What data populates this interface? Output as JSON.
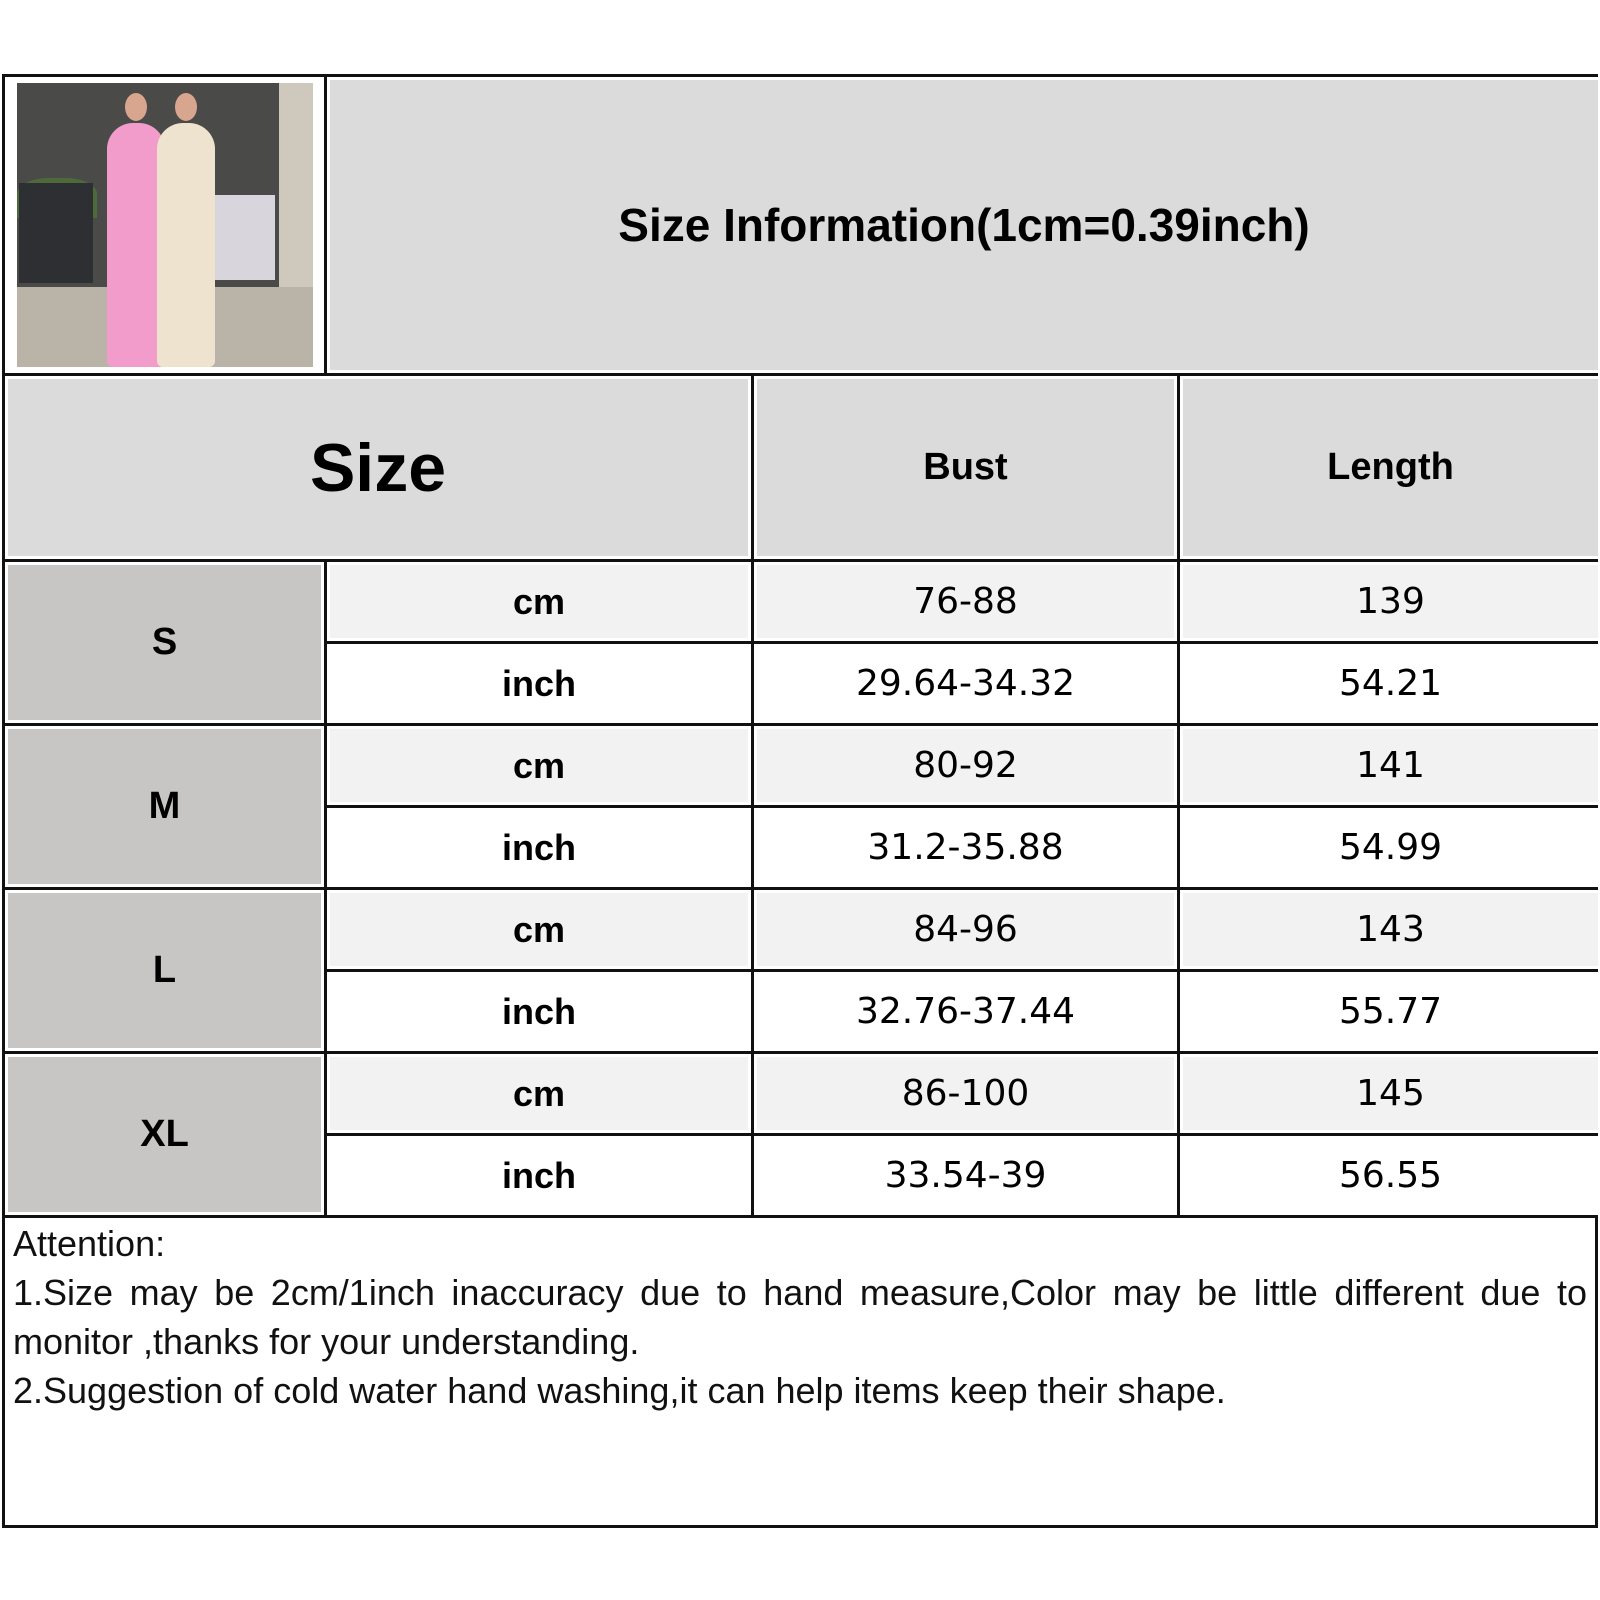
{
  "header": {
    "title": "Size Information(1cm=0.39inch)",
    "photo": "two-models-in-long-dresses"
  },
  "columns": {
    "size": "Size",
    "bust": "Bust",
    "length": "Length"
  },
  "rows": [
    {
      "size": "S",
      "cm": {
        "unit": "cm",
        "bust": "76-88",
        "length": "139"
      },
      "inch": {
        "unit": "inch",
        "bust": "29.64-34.32",
        "length": "54.21"
      }
    },
    {
      "size": "M",
      "cm": {
        "unit": "cm",
        "bust": "80-92",
        "length": "141"
      },
      "inch": {
        "unit": "inch",
        "bust": "31.2-35.88",
        "length": "54.99"
      }
    },
    {
      "size": "L",
      "cm": {
        "unit": "cm",
        "bust": "84-96",
        "length": "143"
      },
      "inch": {
        "unit": "inch",
        "bust": "32.76-37.44",
        "length": "55.77"
      }
    },
    {
      "size": "XL",
      "cm": {
        "unit": "cm",
        "bust": "86-100",
        "length": "145"
      },
      "inch": {
        "unit": "inch",
        "bust": "33.54-39",
        "length": "56.55"
      }
    }
  ],
  "attention": {
    "heading": "Attention:",
    "notes": [
      "1.Size may be 2cm/1inch inaccuracy due to hand measure,Color may be little different due to monitor ,thanks for your understanding.",
      "2.Suggestion of cold water hand washing,it can help items keep their shape."
    ]
  },
  "colors": {
    "header_bg": "#dcdbdb",
    "size_label_bg": "#c8c5c5",
    "cm_row_bg": "#f2f2f2",
    "inch_row_bg": "#ffffff",
    "border": "#111111"
  }
}
